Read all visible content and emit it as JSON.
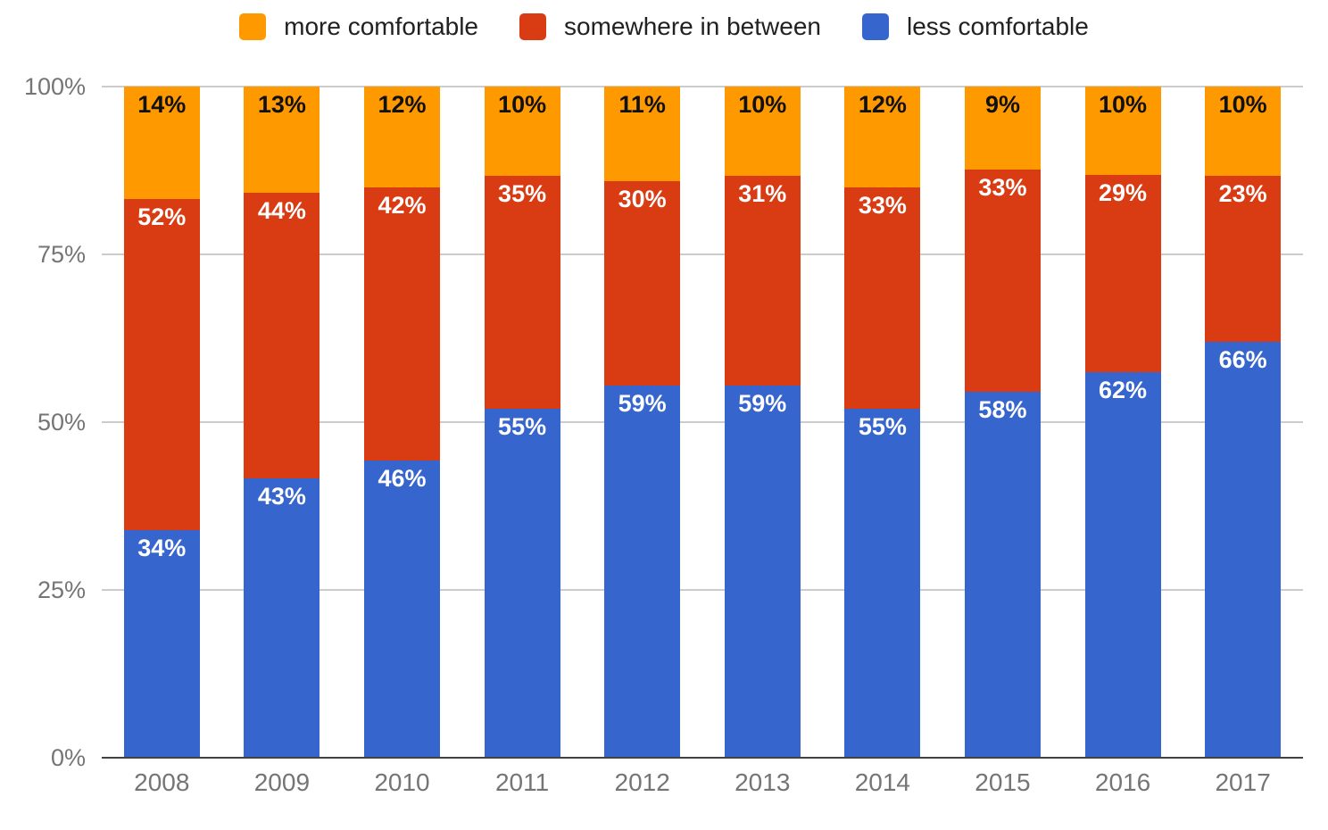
{
  "chart_data": {
    "type": "bar",
    "stacked": true,
    "orientation": "vertical",
    "title": "",
    "categories": [
      "2008",
      "2009",
      "2010",
      "2011",
      "2012",
      "2013",
      "2014",
      "2015",
      "2016",
      "2017"
    ],
    "series": [
      {
        "name": "more comfortable",
        "color": "#FF9900",
        "label_color": "#111111",
        "values": [
          14,
          13,
          12,
          10,
          11,
          10,
          12,
          9,
          10,
          10
        ]
      },
      {
        "name": "somewhere in between",
        "color": "#D93B13",
        "label_color": "#FFFFFF",
        "values": [
          52,
          44,
          42,
          35,
          30,
          31,
          33,
          33,
          29,
          23
        ]
      },
      {
        "name": "less comfortable",
        "color": "#3666CD",
        "label_color": "#FFFFFF",
        "values": [
          34,
          43,
          46,
          55,
          59,
          59,
          55,
          58,
          62,
          66
        ]
      }
    ],
    "value_suffix": "%",
    "y_ticks": [
      "100%",
      "75%",
      "50%",
      "25%",
      "0%"
    ],
    "ylim": [
      0,
      100
    ],
    "grid": true,
    "legend_position": "top",
    "axis_text_color": "#757575",
    "gridline_color": "#cccccc",
    "baseline_color": "#424242"
  }
}
